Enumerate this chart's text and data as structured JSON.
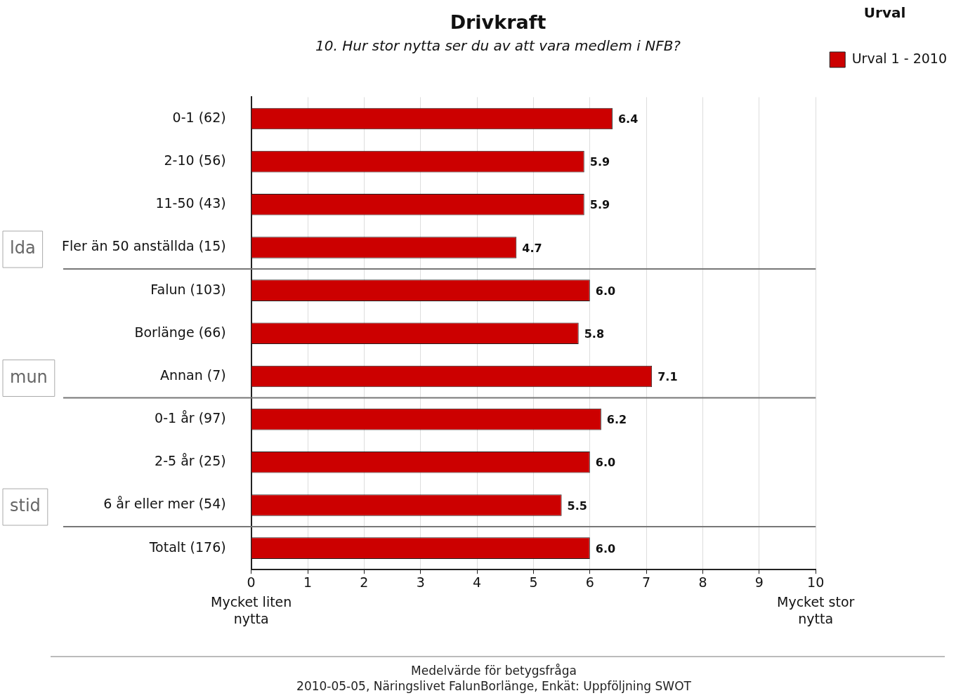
{
  "chart_data": {
    "type": "bar",
    "orientation": "horizontal",
    "title": "Drivkraft",
    "subtitle": "10. Hur stor nytta ser du av att vara medlem i NFB?",
    "categories": [
      "0-1 (62)",
      "2-10 (56)",
      "11-50 (43)",
      "Fler än 50 anställda (15)",
      "Falun (103)",
      "Borlänge (66)",
      "Annan (7)",
      "0-1 år (97)",
      "2-5 år (25)",
      "6 år eller mer (54)",
      "Totalt (176)"
    ],
    "series": [
      {
        "name": "Urval 1 - 2010",
        "color": "#cc0000",
        "values": [
          6.4,
          5.9,
          5.9,
          4.7,
          6.0,
          5.8,
          7.1,
          6.2,
          6.0,
          5.5,
          6.0
        ],
        "value_labels": [
          "6.4",
          "5.9",
          "5.9",
          "4.7",
          "6.0",
          "5.8",
          "7.1",
          "6.2",
          "6.0",
          "5.5",
          "6.0"
        ]
      }
    ],
    "legend_title": "Urval",
    "legend": "top right",
    "xlim": [
      0,
      10
    ],
    "xticks": [
      0,
      1,
      2,
      3,
      4,
      5,
      6,
      7,
      8,
      9,
      10
    ],
    "grid": "x",
    "annotations": [
      "lda",
      "mun",
      "stid",
      "Mycket liten\nnytta",
      "Mycket stor\nnytta",
      "Medelvärde för betygsfråga",
      "2010-05-05, Näringslivet FalunBorlänge, Enkät: Uppföljning SWOT"
    ]
  }
}
